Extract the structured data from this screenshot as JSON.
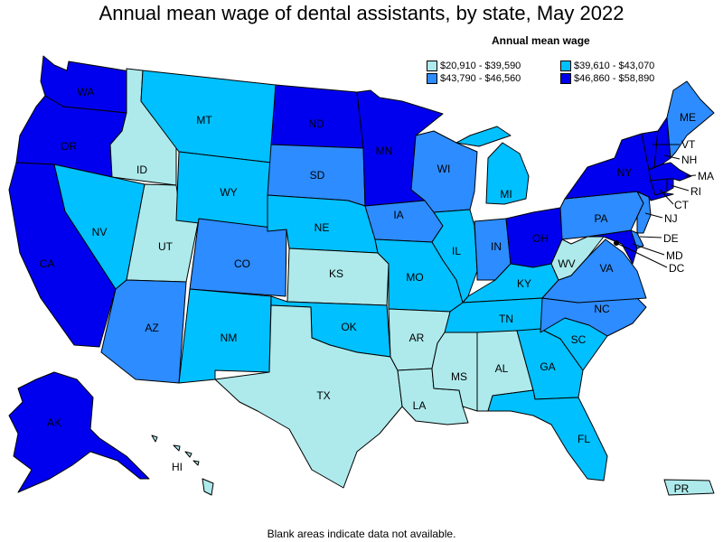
{
  "title": "Annual mean wage of dental assistants, by state, May 2022",
  "legend": {
    "title": "Annual mean wage",
    "items": [
      {
        "range": "$20,910 - $39,590",
        "color": "#aeeaec"
      },
      {
        "range": "$39,610 - $43,070",
        "color": "#00c0ff"
      },
      {
        "range": "$43,790 - $46,560",
        "color": "#2d8cff"
      },
      {
        "range": "$46,860 - $58,890",
        "color": "#0000ee"
      }
    ]
  },
  "footnote": "Blank areas indicate data not available.",
  "states": {
    "WA": {
      "label": "WA",
      "tier": 3
    },
    "OR": {
      "label": "OR",
      "tier": 3
    },
    "CA": {
      "label": "CA",
      "tier": 3
    },
    "ID": {
      "label": "ID",
      "tier": 0
    },
    "NV": {
      "label": "NV",
      "tier": 1
    },
    "UT": {
      "label": "UT",
      "tier": 0
    },
    "AZ": {
      "label": "AZ",
      "tier": 2
    },
    "MT": {
      "label": "MT",
      "tier": 1
    },
    "WY": {
      "label": "WY",
      "tier": 1
    },
    "CO": {
      "label": "CO",
      "tier": 2
    },
    "NM": {
      "label": "NM",
      "tier": 1
    },
    "ND": {
      "label": "ND",
      "tier": 3
    },
    "SD": {
      "label": "SD",
      "tier": 2
    },
    "NE": {
      "label": "NE",
      "tier": 1
    },
    "KS": {
      "label": "KS",
      "tier": 0
    },
    "OK": {
      "label": "OK",
      "tier": 1
    },
    "TX": {
      "label": "TX",
      "tier": 0
    },
    "MN": {
      "label": "MN",
      "tier": 3
    },
    "IA": {
      "label": "IA",
      "tier": 2
    },
    "MO": {
      "label": "MO",
      "tier": 1
    },
    "AR": {
      "label": "AR",
      "tier": 0
    },
    "LA": {
      "label": "LA",
      "tier": 0
    },
    "WI": {
      "label": "WI",
      "tier": 2
    },
    "IL": {
      "label": "IL",
      "tier": 1
    },
    "MI": {
      "label": "MI",
      "tier": 1
    },
    "IN": {
      "label": "IN",
      "tier": 2
    },
    "OH": {
      "label": "OH",
      "tier": 3
    },
    "KY": {
      "label": "KY",
      "tier": 1
    },
    "TN": {
      "label": "TN",
      "tier": 1
    },
    "MS": {
      "label": "MS",
      "tier": 0
    },
    "AL": {
      "label": "AL",
      "tier": 0
    },
    "GA": {
      "label": "GA",
      "tier": 1
    },
    "FL": {
      "label": "FL",
      "tier": 1
    },
    "SC": {
      "label": "SC",
      "tier": 1
    },
    "NC": {
      "label": "NC",
      "tier": 2
    },
    "VA": {
      "label": "VA",
      "tier": 2
    },
    "WV": {
      "label": "WV",
      "tier": 0
    },
    "PA": {
      "label": "PA",
      "tier": 2
    },
    "NY": {
      "label": "NY",
      "tier": 3
    },
    "ME": {
      "label": "ME",
      "tier": 2
    },
    "VT": {
      "label": "VT",
      "tier": 3
    },
    "NH": {
      "label": "NH",
      "tier": 3
    },
    "MA": {
      "label": "MA",
      "tier": 3
    },
    "RI": {
      "label": "RI",
      "tier": 3
    },
    "CT": {
      "label": "CT",
      "tier": 3
    },
    "NJ": {
      "label": "NJ",
      "tier": 2
    },
    "DE": {
      "label": "DE",
      "tier": 2
    },
    "MD": {
      "label": "MD",
      "tier": 3
    },
    "DC": {
      "label": "DC",
      "tier": 3
    },
    "AK": {
      "label": "AK",
      "tier": 3
    },
    "HI": {
      "label": "HI",
      "tier": 0
    },
    "PR": {
      "label": "PR",
      "tier": 0
    }
  }
}
